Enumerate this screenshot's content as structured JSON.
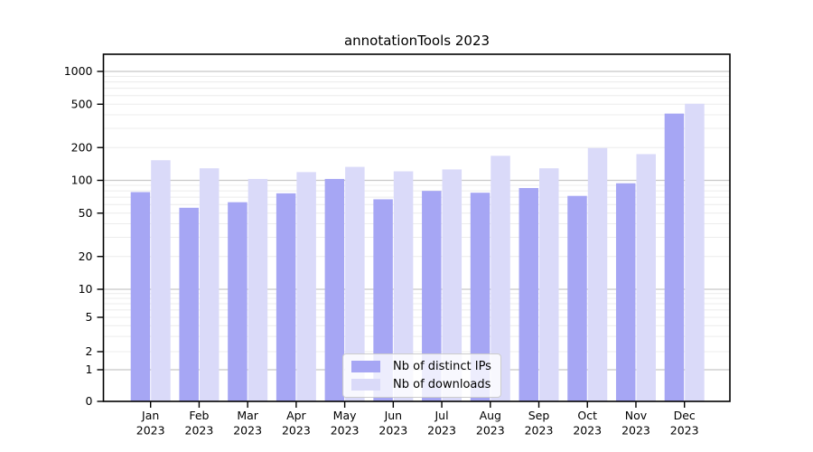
{
  "figure": {
    "background": "#ffffff"
  },
  "chart_data": {
    "type": "bar",
    "title": "annotationTools 2023",
    "categories": [
      "Jan 2023",
      "Feb 2023",
      "Mar 2023",
      "Apr 2023",
      "May 2023",
      "Jun 2023",
      "Jul 2023",
      "Aug 2023",
      "Sep 2023",
      "Oct 2023",
      "Nov 2023",
      "Dec 2023"
    ],
    "series": [
      {
        "name": "Nb of distinct IPs",
        "color": "#a6a6f4",
        "values": [
          78,
          56,
          63,
          76,
          103,
          67,
          80,
          77,
          85,
          72,
          94,
          410
        ]
      },
      {
        "name": "Nb of downloads",
        "color": "#dadaf9",
        "values": [
          153,
          129,
          103,
          119,
          133,
          121,
          126,
          168,
          129,
          198,
          174,
          505
        ]
      }
    ],
    "xlabel": "",
    "ylabel": "",
    "yscale": "log",
    "ytick_labels": [
      "1000",
      "500",
      "200",
      "100",
      "50",
      "20",
      "10",
      "5",
      "2",
      "1",
      "0"
    ],
    "ylim": [
      0,
      1200
    ],
    "grid": "on",
    "legend_position": "lower-center",
    "colors": {
      "major_gridline": "#c8c8c8",
      "minor_gridline": "#ececec",
      "axis": "#000000"
    }
  }
}
